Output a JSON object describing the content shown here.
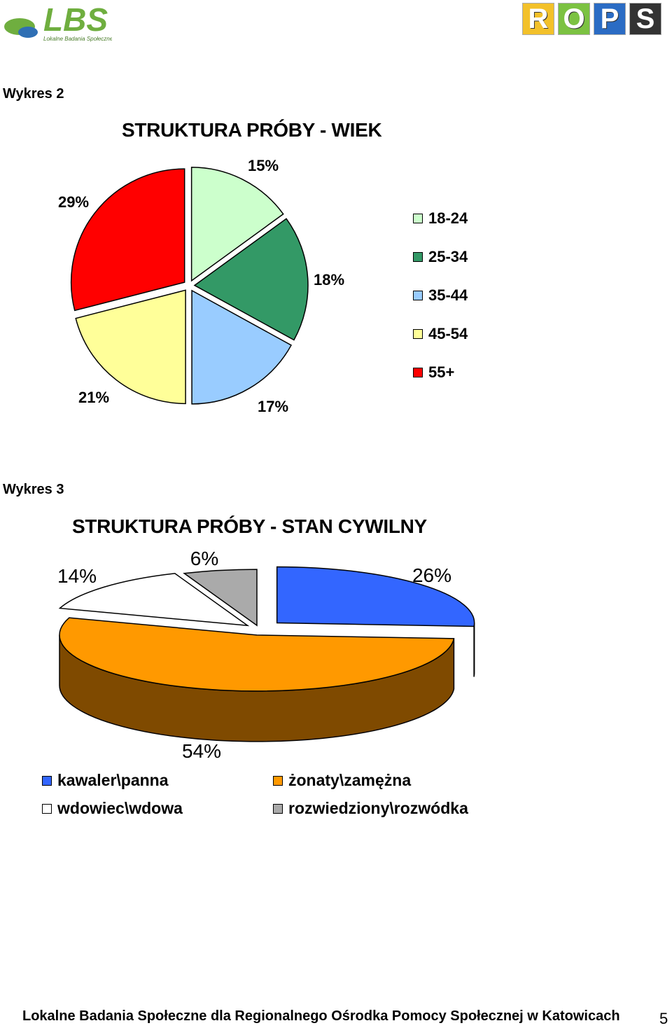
{
  "header": {
    "lbs_logo": {
      "text": "LBS",
      "subtitle": "Lokalne Badania Społeczne"
    },
    "rops_logo": {
      "letters": [
        "R",
        "O",
        "P",
        "S"
      ],
      "colors": [
        "#f3c12a",
        "#7cc242",
        "#2b6cc4",
        "#333333"
      ]
    }
  },
  "figure2": {
    "caption": "Wykres 2",
    "chart_data": {
      "type": "pie",
      "title": "STRUKTURA PRÓBY - WIEK",
      "categories": [
        "18-24",
        "25-34",
        "35-44",
        "45-54",
        "55+"
      ],
      "values": [
        15,
        18,
        17,
        21,
        29
      ],
      "value_labels": [
        "15%",
        "18%",
        "17%",
        "21%",
        "29%"
      ],
      "colors": [
        "#ccffcc",
        "#339966",
        "#99ccff",
        "#ffff99",
        "#ff0000"
      ],
      "legend_position": "right"
    }
  },
  "figure3": {
    "caption": "Wykres 3",
    "chart_data": {
      "type": "pie",
      "style": "3d-exploded",
      "title": "STRUKTURA PRÓBY - STAN CYWILNY",
      "categories": [
        "kawaler\\panna",
        "żonaty\\zamężna",
        "wdowiec\\wdowa",
        "rozwiedziony\\rozwódka"
      ],
      "values": [
        26,
        54,
        14,
        6
      ],
      "value_labels": [
        "26%",
        "54%",
        "14%",
        "6%"
      ],
      "colors": [
        "#3366ff",
        "#ff9900",
        "#ffffff",
        "#aaaaaa"
      ],
      "side_colors": [
        "#1a2d80",
        "#7f4a00",
        "#808080",
        "#555555"
      ],
      "legend_position": "bottom"
    }
  },
  "footer": {
    "text": "Lokalne Badania Społeczne dla Regionalnego Ośrodka Pomocy Społecznej w Katowicach",
    "page_number": "5"
  }
}
